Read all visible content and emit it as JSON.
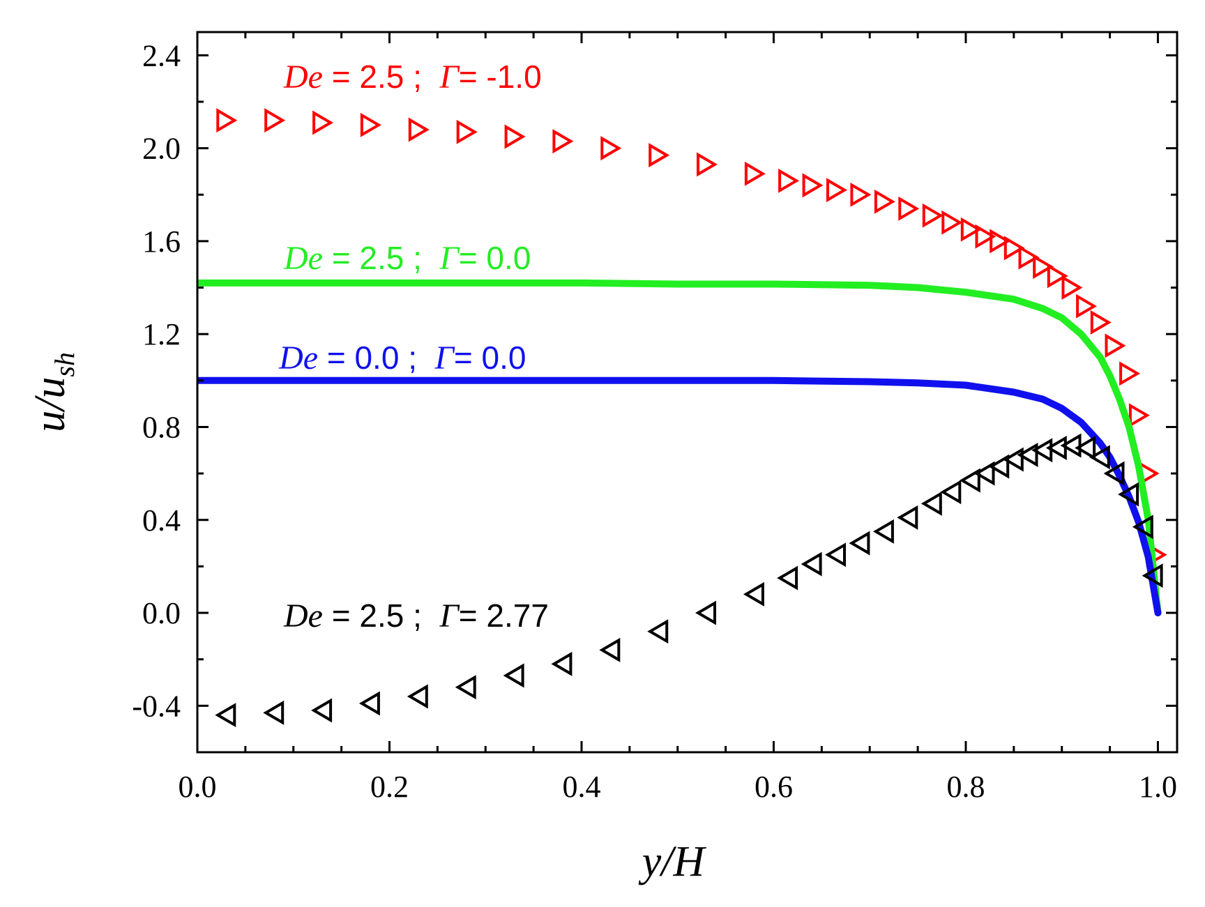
{
  "chart_data": {
    "type": "line",
    "title": "",
    "xlabel": {
      "main": "y/H"
    },
    "ylabel": {
      "main": "u/u",
      "sub": "sh"
    },
    "xlim": [
      0.0,
      1.02
    ],
    "ylim": [
      -0.6,
      2.5
    ],
    "xticks": [
      0.0,
      0.2,
      0.4,
      0.6,
      0.8,
      1.0
    ],
    "xtick_labels": [
      "0.0",
      "0.2",
      "0.4",
      "0.6",
      "0.8",
      "1.0"
    ],
    "yticks": [
      -0.4,
      0.0,
      0.4,
      0.8,
      1.2,
      1.6,
      2.0,
      2.4
    ],
    "ytick_labels": [
      "-0.4",
      "0.0",
      "0.4",
      "0.8",
      "1.2",
      "1.6",
      "2.0",
      "2.4"
    ],
    "grid": false,
    "series": [
      {
        "name": "De = 2.5 ; Γ = -1.0",
        "style": "markers",
        "marker": "triangle-right",
        "color": "#ff0000",
        "x": [
          0.03,
          0.08,
          0.13,
          0.18,
          0.23,
          0.28,
          0.33,
          0.38,
          0.43,
          0.48,
          0.53,
          0.58,
          0.615,
          0.64,
          0.665,
          0.69,
          0.715,
          0.74,
          0.765,
          0.785,
          0.805,
          0.82,
          0.835,
          0.85,
          0.865,
          0.88,
          0.895,
          0.91,
          0.925,
          0.94,
          0.955,
          0.97,
          0.98,
          0.99,
          0.998
        ],
        "y": [
          2.12,
          2.12,
          2.11,
          2.1,
          2.08,
          2.07,
          2.05,
          2.03,
          2.0,
          1.97,
          1.93,
          1.89,
          1.86,
          1.84,
          1.82,
          1.8,
          1.77,
          1.74,
          1.71,
          1.68,
          1.65,
          1.62,
          1.6,
          1.57,
          1.53,
          1.49,
          1.45,
          1.4,
          1.32,
          1.25,
          1.15,
          1.03,
          0.85,
          0.6,
          0.25
        ]
      },
      {
        "name": "De = 2.5 ; Γ = 0.0",
        "style": "line",
        "color": "#22ee22",
        "x": [
          0.0,
          0.1,
          0.2,
          0.3,
          0.4,
          0.5,
          0.6,
          0.7,
          0.75,
          0.8,
          0.85,
          0.88,
          0.9,
          0.92,
          0.94,
          0.95,
          0.96,
          0.97,
          0.98,
          0.99,
          1.0
        ],
        "y": [
          1.42,
          1.42,
          1.42,
          1.42,
          1.42,
          1.415,
          1.415,
          1.41,
          1.4,
          1.38,
          1.35,
          1.31,
          1.27,
          1.2,
          1.1,
          1.02,
          0.92,
          0.8,
          0.63,
          0.4,
          0.0
        ]
      },
      {
        "name": "De = 0.0 ; Γ = 0.0",
        "style": "line",
        "color": "#1010ee",
        "x": [
          0.0,
          0.1,
          0.2,
          0.3,
          0.4,
          0.5,
          0.6,
          0.7,
          0.75,
          0.8,
          0.85,
          0.88,
          0.9,
          0.92,
          0.94,
          0.95,
          0.96,
          0.97,
          0.98,
          0.99,
          1.0
        ],
        "y": [
          1.0,
          1.0,
          1.0,
          1.0,
          1.0,
          1.0,
          1.0,
          0.995,
          0.99,
          0.98,
          0.95,
          0.92,
          0.88,
          0.82,
          0.73,
          0.67,
          0.59,
          0.5,
          0.39,
          0.24,
          0.0
        ]
      },
      {
        "name": "De = 2.5 ; Γ = 2.77",
        "style": "markers",
        "marker": "triangle-left",
        "color": "#000000",
        "x": [
          0.03,
          0.08,
          0.13,
          0.18,
          0.23,
          0.28,
          0.33,
          0.38,
          0.43,
          0.48,
          0.53,
          0.58,
          0.615,
          0.64,
          0.665,
          0.69,
          0.715,
          0.74,
          0.765,
          0.785,
          0.805,
          0.82,
          0.835,
          0.85,
          0.865,
          0.88,
          0.895,
          0.91,
          0.925,
          0.94,
          0.955,
          0.97,
          0.985,
          0.995
        ],
        "y": [
          -0.44,
          -0.43,
          -0.42,
          -0.39,
          -0.36,
          -0.32,
          -0.27,
          -0.22,
          -0.16,
          -0.08,
          0.0,
          0.08,
          0.15,
          0.21,
          0.25,
          0.3,
          0.35,
          0.41,
          0.47,
          0.52,
          0.57,
          0.6,
          0.63,
          0.66,
          0.68,
          0.7,
          0.71,
          0.72,
          0.71,
          0.67,
          0.6,
          0.51,
          0.37,
          0.16
        ]
      }
    ],
    "annotations": [
      {
        "series": 0,
        "text_de": "De",
        "text_mid": " = 2.5 ;  ",
        "text_g": "Γ",
        "text_end": "= -1.0",
        "color": "#ff0000",
        "x": 0.09,
        "y": 2.26
      },
      {
        "series": 1,
        "text_de": "De",
        "text_mid": " = 2.5 ;  ",
        "text_g": "Γ",
        "text_end": "= 0.0",
        "color": "#22ee22",
        "x": 0.09,
        "y": 1.48
      },
      {
        "series": 2,
        "text_de": "De",
        "text_mid": " = 0.0 ;  ",
        "text_g": "Γ",
        "text_end": "= 0.0",
        "color": "#1010ee",
        "x": 0.085,
        "y": 1.05
      },
      {
        "series": 3,
        "text_de": "De",
        "text_mid": " = 2.5 ;  ",
        "text_g": "Γ",
        "text_end": "= 2.77",
        "color": "#000000",
        "x": 0.09,
        "y": -0.06
      }
    ]
  }
}
